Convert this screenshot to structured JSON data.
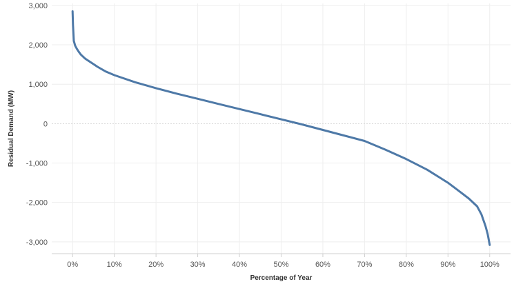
{
  "chart_data": {
    "type": "line",
    "title": "",
    "xlabel": "Percentage of Year",
    "ylabel": "Residual Demand (MW)",
    "xlim": [
      -5,
      105
    ],
    "ylim": [
      -3300,
      3050
    ],
    "x_ticks": [
      0,
      10,
      20,
      30,
      40,
      50,
      60,
      70,
      80,
      90,
      100
    ],
    "x_tick_labels": [
      "0%",
      "10%",
      "20%",
      "30%",
      "40%",
      "50%",
      "60%",
      "70%",
      "80%",
      "90%",
      "100%"
    ],
    "y_ticks": [
      3000,
      2000,
      1000,
      0,
      -1000,
      -2000,
      -3000
    ],
    "y_tick_labels": [
      "3,000",
      "2,000",
      "1,000",
      "0",
      "-1,000",
      "-2,000",
      "-3,000"
    ],
    "grid": true,
    "series": [
      {
        "color": "#4e79a7",
        "x": [
          0,
          0.1,
          0.3,
          0.6,
          1,
          1.5,
          2,
          3,
          4,
          5,
          6,
          8,
          10,
          15,
          20,
          25,
          30,
          35,
          40,
          45,
          50,
          55,
          60,
          65,
          70,
          75,
          80,
          85,
          90,
          93,
          95,
          97,
          98,
          99,
          99.5,
          100
        ],
        "y": [
          2850,
          2500,
          2100,
          1980,
          1900,
          1820,
          1750,
          1650,
          1580,
          1510,
          1440,
          1320,
          1230,
          1050,
          900,
          760,
          630,
          500,
          370,
          240,
          110,
          -20,
          -160,
          -300,
          -440,
          -660,
          -900,
          -1170,
          -1500,
          -1740,
          -1900,
          -2100,
          -2300,
          -2600,
          -2800,
          -3080
        ]
      }
    ]
  }
}
